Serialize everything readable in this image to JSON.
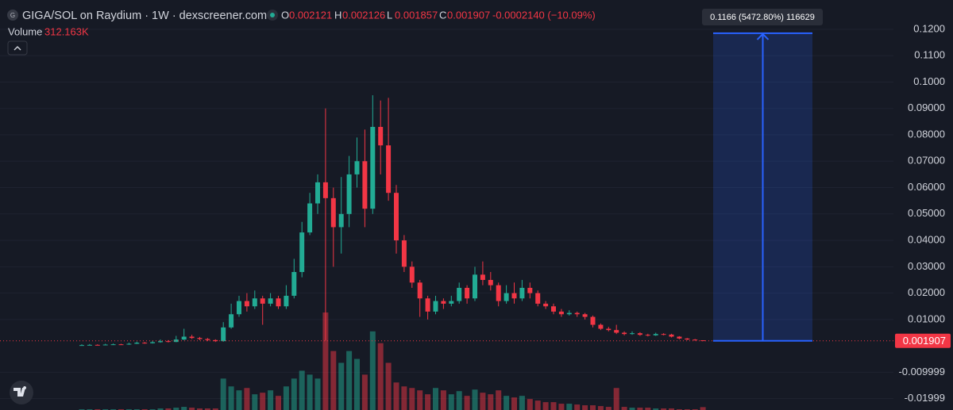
{
  "chart_data": {
    "type": "candlestick",
    "title": "GIGA/SOL on Raydium · 1W · dexscreener.com",
    "symbol_icon": "G",
    "ohlc_labels": [
      "O",
      "H",
      "L",
      "C"
    ],
    "change_label": "-0.0002140 (−10.09%)",
    "open": [
      0.0002,
      0.0003,
      0.0004,
      0.0003,
      0.0005,
      0.0006,
      0.0005,
      0.0008,
      0.0012,
      0.001,
      0.0014,
      0.0018,
      0.0015,
      0.0024,
      0.0035,
      0.003,
      0.0026,
      0.0022,
      0.0018,
      0.007,
      0.012,
      0.017,
      0.015,
      0.018,
      0.016,
      0.018,
      0.015,
      0.019,
      0.028,
      0.043,
      0.054,
      0.062,
      0.056,
      0.045,
      0.05,
      0.065,
      0.07,
      0.052,
      0.083,
      0.076,
      0.058,
      0.04,
      0.03,
      0.024,
      0.018,
      0.013,
      0.017,
      0.016,
      0.017,
      0.022,
      0.018,
      0.027,
      0.025,
      0.023,
      0.017,
      0.02,
      0.018,
      0.022,
      0.02,
      0.016,
      0.015,
      0.013,
      0.012,
      0.0125,
      0.012,
      0.011,
      0.008,
      0.0065,
      0.006,
      0.005,
      0.0045,
      0.0048,
      0.0042,
      0.004,
      0.0045,
      0.0043,
      0.0035,
      0.0028,
      0.0024,
      0.002121
    ],
    "high": [
      0.0006,
      0.0007,
      0.0006,
      0.0008,
      0.0009,
      0.0008,
      0.0012,
      0.0016,
      0.0015,
      0.0019,
      0.0024,
      0.0022,
      0.0038,
      0.0065,
      0.0042,
      0.0034,
      0.003,
      0.0025,
      0.009,
      0.016,
      0.019,
      0.02,
      0.021,
      0.019,
      0.02,
      0.019,
      0.023,
      0.033,
      0.047,
      0.058,
      0.065,
      0.09,
      0.06,
      0.064,
      0.072,
      0.079,
      0.082,
      0.095,
      0.093,
      0.094,
      0.061,
      0.042,
      0.032,
      0.025,
      0.019,
      0.019,
      0.018,
      0.019,
      0.024,
      0.023,
      0.03,
      0.032,
      0.028,
      0.024,
      0.023,
      0.024,
      0.025,
      0.024,
      0.021,
      0.017,
      0.016,
      0.014,
      0.0135,
      0.013,
      0.0125,
      0.0115,
      0.0085,
      0.0072,
      0.008,
      0.0055,
      0.0055,
      0.0052,
      0.0046,
      0.005,
      0.0048,
      0.0046,
      0.0037,
      0.003,
      0.0026,
      0.002126
    ],
    "low": [
      0.0001,
      0.0002,
      0.0002,
      0.0002,
      0.0004,
      0.0004,
      0.0004,
      0.0007,
      0.0008,
      0.0009,
      0.0012,
      0.0013,
      0.0014,
      0.0022,
      0.0026,
      0.0022,
      0.0018,
      0.0015,
      0.0016,
      0.0065,
      0.011,
      0.013,
      0.014,
      0.008,
      0.015,
      0.014,
      0.014,
      0.018,
      0.026,
      0.042,
      0.05,
      0.002,
      0.03,
      0.035,
      0.045,
      0.06,
      0.045,
      0.05,
      0.065,
      0.055,
      0.035,
      0.028,
      0.022,
      0.011,
      0.01,
      0.012,
      0.014,
      0.015,
      0.016,
      0.016,
      0.017,
      0.023,
      0.021,
      0.015,
      0.016,
      0.016,
      0.017,
      0.018,
      0.015,
      0.014,
      0.012,
      0.011,
      0.0115,
      0.011,
      0.01,
      0.007,
      0.006,
      0.0055,
      0.0045,
      0.004,
      0.0042,
      0.0038,
      0.0036,
      0.0038,
      0.004,
      0.0032,
      0.0025,
      0.0022,
      0.002,
      0.001857
    ],
    "close": [
      0.0003,
      0.0004,
      0.0003,
      0.0005,
      0.0006,
      0.0005,
      0.0008,
      0.0012,
      0.001,
      0.0014,
      0.0018,
      0.0015,
      0.0024,
      0.0035,
      0.003,
      0.0026,
      0.0022,
      0.0018,
      0.007,
      0.012,
      0.017,
      0.015,
      0.018,
      0.016,
      0.018,
      0.015,
      0.019,
      0.028,
      0.043,
      0.054,
      0.062,
      0.056,
      0.045,
      0.05,
      0.065,
      0.07,
      0.052,
      0.083,
      0.076,
      0.058,
      0.04,
      0.03,
      0.024,
      0.018,
      0.013,
      0.017,
      0.016,
      0.017,
      0.022,
      0.018,
      0.027,
      0.025,
      0.023,
      0.017,
      0.02,
      0.018,
      0.022,
      0.02,
      0.016,
      0.015,
      0.013,
      0.012,
      0.0125,
      0.012,
      0.011,
      0.008,
      0.0065,
      0.006,
      0.005,
      0.0045,
      0.0048,
      0.0042,
      0.004,
      0.0045,
      0.0043,
      0.0035,
      0.0028,
      0.0024,
      0.0022,
      0.001907
    ],
    "up_color": "#22ab94",
    "down_color": "#f23645",
    "volume": {
      "name": "Volume",
      "last_value_label": "312.163K",
      "lim": [
        0,
        12000000
      ],
      "values": [
        85000,
        85000,
        85000,
        85000,
        85000,
        85000,
        85000,
        85000,
        85000,
        85000,
        170000,
        170000,
        255000,
        340000,
        255000,
        170000,
        170000,
        170000,
        3400000,
        2550000,
        2125000,
        2380000,
        1700000,
        1870000,
        2125000,
        1530000,
        2550000,
        3400000,
        4250000,
        3825000,
        3400000,
        10540000,
        6375000,
        5100000,
        6375000,
        5525000,
        3825000,
        8500000,
        7225000,
        5100000,
        2975000,
        2550000,
        2380000,
        2125000,
        1700000,
        2380000,
        2125000,
        1700000,
        2040000,
        1530000,
        2210000,
        1870000,
        1700000,
        2125000,
        1530000,
        1360000,
        1530000,
        1190000,
        1020000,
        850000,
        850000,
        680000,
        680000,
        595000,
        510000,
        510000,
        425000,
        340000,
        2380000,
        340000,
        255000,
        255000,
        255000,
        170000,
        170000,
        170000,
        85000,
        85000,
        85000,
        312163
      ]
    },
    "ylim": [
      -0.0243,
      0.1311
    ],
    "yticks": [
      {
        "value": 0.12,
        "label": "0.1200"
      },
      {
        "value": 0.11,
        "label": "0.1100"
      },
      {
        "value": 0.1,
        "label": "0.1000"
      },
      {
        "value": 0.09,
        "label": "0.09000"
      },
      {
        "value": 0.08,
        "label": "0.08000"
      },
      {
        "value": 0.07,
        "label": "0.07000"
      },
      {
        "value": 0.06,
        "label": "0.06000"
      },
      {
        "value": 0.05,
        "label": "0.05000"
      },
      {
        "value": 0.04,
        "label": "0.04000"
      },
      {
        "value": 0.03,
        "label": "0.03000"
      },
      {
        "value": 0.02,
        "label": "0.02000"
      },
      {
        "value": 0.01,
        "label": "0.01000"
      },
      {
        "value": -0.009999,
        "label": "-0.009999"
      },
      {
        "value": -0.01999,
        "label": "-0.01999"
      }
    ],
    "grid": true,
    "measure": {
      "change": 0.1166,
      "label": "0.1166 (5472.80%) 116629",
      "color": "#2962ff"
    }
  }
}
